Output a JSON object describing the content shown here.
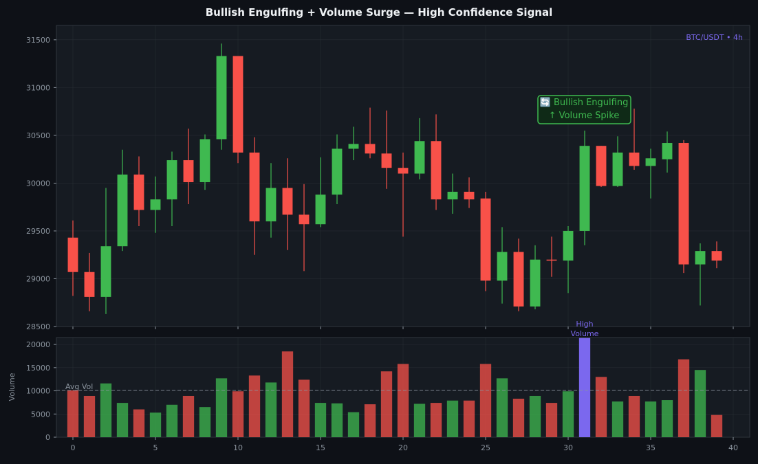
{
  "title": "Bullish Engulfing + Volume Surge — High Confidence Signal",
  "pair_label": "BTC/USDT • 4h",
  "annotation": {
    "line1": "🔄 Bullish Engulfing",
    "line2": "↑ Volume Spike"
  },
  "high_volume_label": [
    "High",
    "Volume"
  ],
  "avg_vol_label": "Avg Vol",
  "volume_axis_label": "Volume",
  "colors": {
    "up": "#3fb950",
    "down": "#f85149",
    "highlight": "#7b68ee",
    "annotation": "#3fb950"
  },
  "chart_data": [
    {
      "type": "candlestick",
      "ylim": [
        28500,
        31650
      ],
      "xlim": [
        -1,
        41
      ],
      "yticks": [
        28500,
        29000,
        29500,
        30000,
        30500,
        31000,
        31500
      ],
      "xticks": [
        0,
        5,
        10,
        15,
        20,
        25,
        30,
        35,
        40
      ],
      "grid": true,
      "candles": [
        {
          "x": 0,
          "o": 29430,
          "h": 29610,
          "l": 28820,
          "c": 29070
        },
        {
          "x": 1,
          "o": 29070,
          "h": 29270,
          "l": 28660,
          "c": 28810
        },
        {
          "x": 2,
          "o": 28810,
          "h": 29950,
          "l": 28630,
          "c": 29340
        },
        {
          "x": 3,
          "o": 29340,
          "h": 30350,
          "l": 29290,
          "c": 30090
        },
        {
          "x": 4,
          "o": 30090,
          "h": 30280,
          "l": 29550,
          "c": 29720
        },
        {
          "x": 5,
          "o": 29720,
          "h": 30070,
          "l": 29480,
          "c": 29830
        },
        {
          "x": 6,
          "o": 29830,
          "h": 30330,
          "l": 29550,
          "c": 30240
        },
        {
          "x": 7,
          "o": 30240,
          "h": 30570,
          "l": 29780,
          "c": 30010
        },
        {
          "x": 8,
          "o": 30010,
          "h": 30510,
          "l": 29930,
          "c": 30460
        },
        {
          "x": 9,
          "o": 30460,
          "h": 31460,
          "l": 30350,
          "c": 31330
        },
        {
          "x": 10,
          "o": 31330,
          "h": 31330,
          "l": 30210,
          "c": 30320
        },
        {
          "x": 11,
          "o": 30320,
          "h": 30480,
          "l": 29250,
          "c": 29600
        },
        {
          "x": 12,
          "o": 29600,
          "h": 30210,
          "l": 29430,
          "c": 29950
        },
        {
          "x": 13,
          "o": 29950,
          "h": 30260,
          "l": 29300,
          "c": 29670
        },
        {
          "x": 14,
          "o": 29670,
          "h": 29990,
          "l": 29080,
          "c": 29570
        },
        {
          "x": 15,
          "o": 29570,
          "h": 30270,
          "l": 29540,
          "c": 29880
        },
        {
          "x": 16,
          "o": 29880,
          "h": 30510,
          "l": 29780,
          "c": 30360
        },
        {
          "x": 17,
          "o": 30360,
          "h": 30590,
          "l": 30240,
          "c": 30410
        },
        {
          "x": 18,
          "o": 30410,
          "h": 30790,
          "l": 30260,
          "c": 30310
        },
        {
          "x": 19,
          "o": 30310,
          "h": 30760,
          "l": 29940,
          "c": 30160
        },
        {
          "x": 20,
          "o": 30160,
          "h": 30320,
          "l": 29440,
          "c": 30100
        },
        {
          "x": 21,
          "o": 30100,
          "h": 30680,
          "l": 30040,
          "c": 30440
        },
        {
          "x": 22,
          "o": 30440,
          "h": 30720,
          "l": 29720,
          "c": 29830
        },
        {
          "x": 23,
          "o": 29830,
          "h": 30100,
          "l": 29680,
          "c": 29910
        },
        {
          "x": 24,
          "o": 29910,
          "h": 30060,
          "l": 29740,
          "c": 29830
        },
        {
          "x": 25,
          "o": 29840,
          "h": 29910,
          "l": 28870,
          "c": 28980
        },
        {
          "x": 26,
          "o": 28980,
          "h": 29540,
          "l": 28740,
          "c": 29280
        },
        {
          "x": 27,
          "o": 29280,
          "h": 29420,
          "l": 28660,
          "c": 28710
        },
        {
          "x": 28,
          "o": 28710,
          "h": 29350,
          "l": 28680,
          "c": 29200
        },
        {
          "x": 29,
          "o": 29200,
          "h": 29440,
          "l": 29020,
          "c": 29190
        },
        {
          "x": 30,
          "o": 29190,
          "h": 29550,
          "l": 28850,
          "c": 29500
        },
        {
          "x": 31,
          "o": 29500,
          "h": 30550,
          "l": 29350,
          "c": 30390
        },
        {
          "x": 32,
          "o": 30390,
          "h": 30390,
          "l": 29960,
          "c": 29970
        },
        {
          "x": 33,
          "o": 29970,
          "h": 30490,
          "l": 29960,
          "c": 30320
        },
        {
          "x": 34,
          "o": 30320,
          "h": 30780,
          "l": 30140,
          "c": 30180
        },
        {
          "x": 35,
          "o": 30180,
          "h": 30360,
          "l": 29840,
          "c": 30260
        },
        {
          "x": 36,
          "o": 30250,
          "h": 30540,
          "l": 30110,
          "c": 30420
        },
        {
          "x": 37,
          "o": 30420,
          "h": 30450,
          "l": 29060,
          "c": 29150
        },
        {
          "x": 38,
          "o": 29150,
          "h": 29370,
          "l": 28720,
          "c": 29290
        },
        {
          "x": 39,
          "o": 29290,
          "h": 29390,
          "l": 29110,
          "c": 29190
        }
      ]
    },
    {
      "type": "bar",
      "ylabel": "Volume",
      "ylim": [
        0,
        21500
      ],
      "yticks": [
        0,
        5000,
        10000,
        15000,
        20000
      ],
      "avg_volume": 10100,
      "highlight_index": 31,
      "x": [
        0,
        1,
        2,
        3,
        4,
        5,
        6,
        7,
        8,
        9,
        10,
        11,
        12,
        13,
        14,
        15,
        16,
        17,
        18,
        19,
        20,
        21,
        22,
        23,
        24,
        25,
        26,
        27,
        28,
        29,
        30,
        31,
        32,
        33,
        34,
        35,
        36,
        37,
        38,
        39
      ],
      "values": [
        10100,
        8900,
        11600,
        7400,
        6000,
        5300,
        7000,
        8900,
        6500,
        12700,
        9900,
        13300,
        11800,
        18500,
        12400,
        7400,
        7300,
        5400,
        7100,
        14200,
        15800,
        7200,
        7400,
        7900,
        7900,
        15800,
        12700,
        8300,
        8900,
        7400,
        9900,
        21400,
        13000,
        7700,
        8900,
        7700,
        8000,
        16800,
        14500,
        4800
      ]
    }
  ]
}
